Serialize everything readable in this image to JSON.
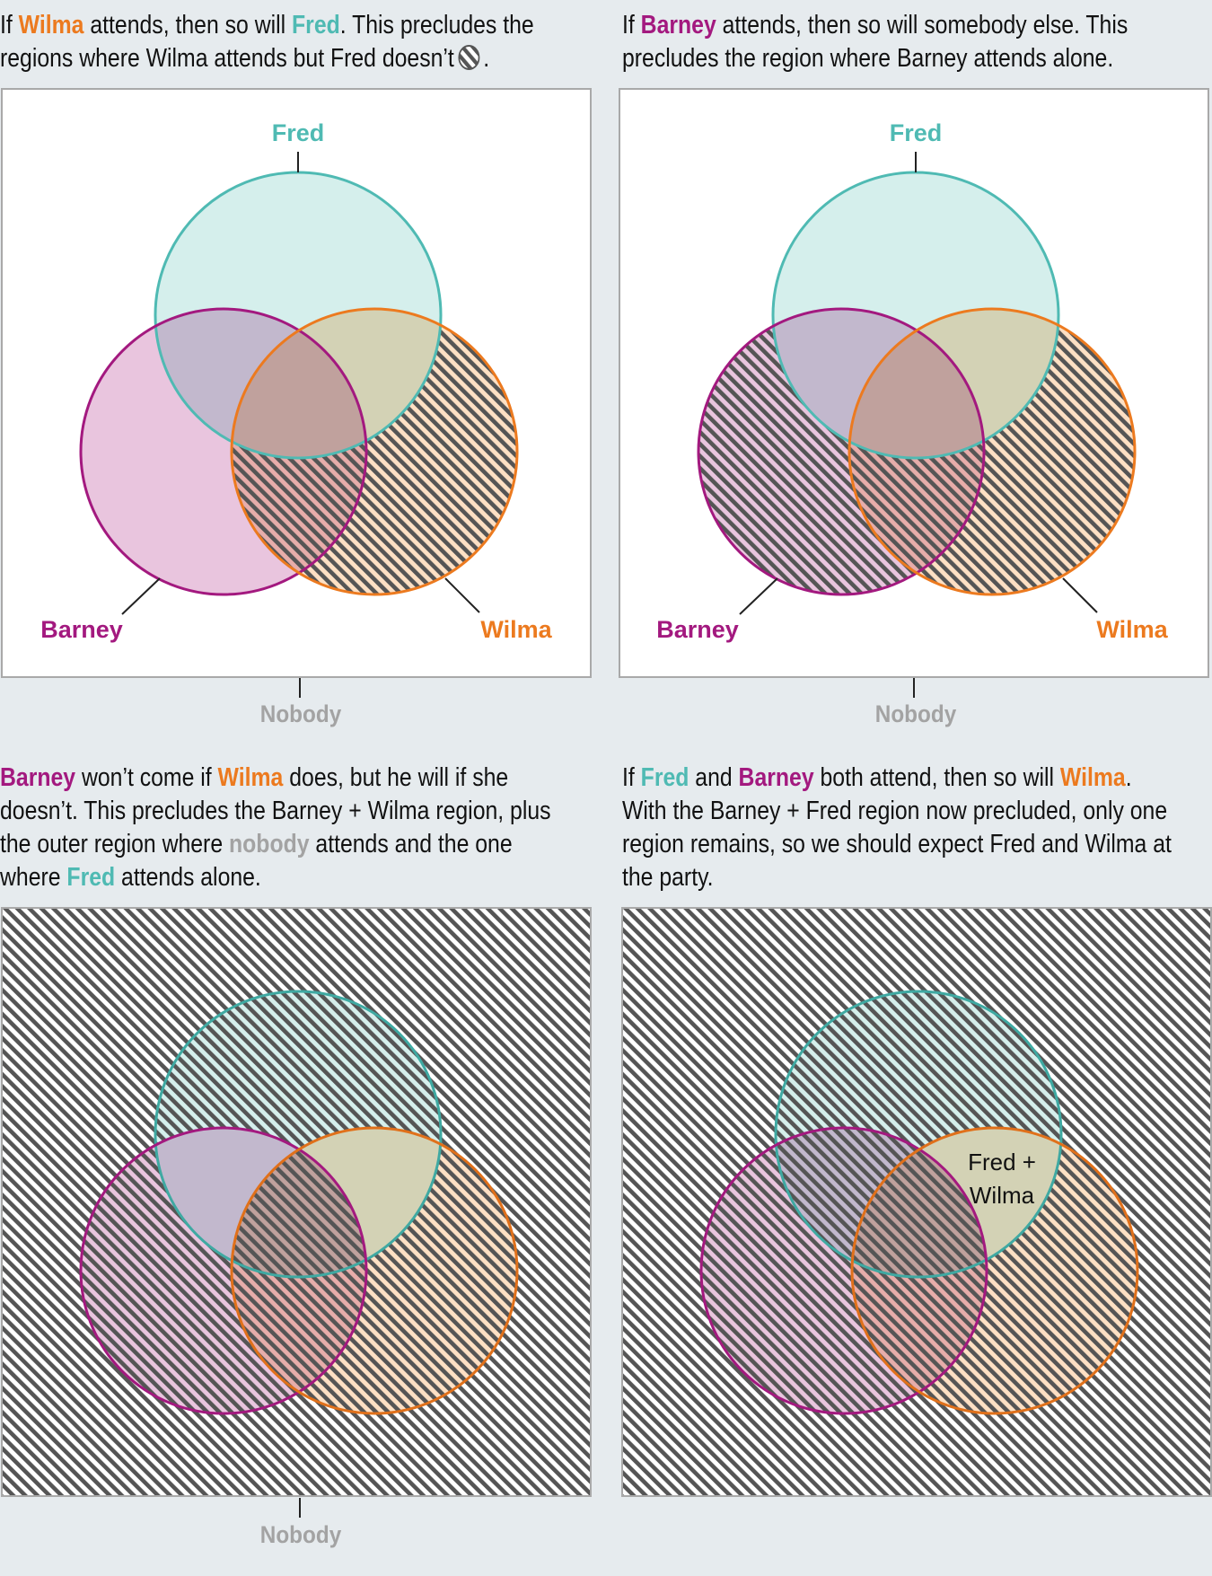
{
  "colors": {
    "background": "#e6ebee",
    "fred": "#4fbab3",
    "barney": "#a3197f",
    "wilma": "#ec7a1f",
    "nobody": "#a3a3a3",
    "hatch": "#555555",
    "border": "#a9a9a9"
  },
  "captions": [
    {
      "lines": [
        [
          {
            "t": "If "
          },
          {
            "t": "Wilma",
            "c": "wilma"
          },
          {
            "t": " attends, then so will "
          },
          {
            "t": "Fred",
            "c": "fred"
          },
          {
            "t": ". This precludes the"
          }
        ],
        [
          {
            "t": "regions where Wilma attends but Fred doesn’t"
          },
          {
            "icon": "hatched-circle-icon"
          },
          {
            "t": "."
          }
        ]
      ]
    },
    {
      "lines": [
        [
          {
            "t": "If "
          },
          {
            "t": "Barney",
            "c": "barney"
          },
          {
            "t": " attends, then so will somebody else. This"
          }
        ],
        [
          {
            "t": "precludes the region where Barney attends alone."
          }
        ]
      ]
    },
    {
      "lines": [
        [
          {
            "t": "Barney",
            "c": "barney"
          },
          {
            "t": " won’t come if "
          },
          {
            "t": "Wilma",
            "c": "wilma"
          },
          {
            "t": " does, but he will if she"
          }
        ],
        [
          {
            "t": "doesn’t. This precludes the Barney + Wilma region, plus"
          }
        ],
        [
          {
            "t": "the outer region where "
          },
          {
            "t": "nobody",
            "c": "nobody"
          },
          {
            "t": " attends and the one"
          }
        ],
        [
          {
            "t": "where "
          },
          {
            "t": "Fred",
            "c": "fred"
          },
          {
            "t": " attends alone."
          }
        ]
      ]
    },
    {
      "lines": [
        [
          {
            "t": "If "
          },
          {
            "t": "Fred",
            "c": "fred"
          },
          {
            "t": " and "
          },
          {
            "t": "Barney",
            "c": "barney"
          },
          {
            "t": " both attend, then so will "
          },
          {
            "t": "Wilma",
            "c": "wilma"
          },
          {
            "t": "."
          }
        ],
        [
          {
            "t": "With the Barney + Fred region now precluded, only one"
          }
        ],
        [
          {
            "t": "region remains, so we should expect Fred and Wilma at"
          }
        ],
        [
          {
            "t": "the party."
          }
        ]
      ]
    }
  ],
  "labels": {
    "fred": "Fred",
    "barney": "Barney",
    "wilma": "Wilma",
    "nobody": "Nobody",
    "remaining_line1": "Fred +",
    "remaining_line2": "Wilma"
  }
}
